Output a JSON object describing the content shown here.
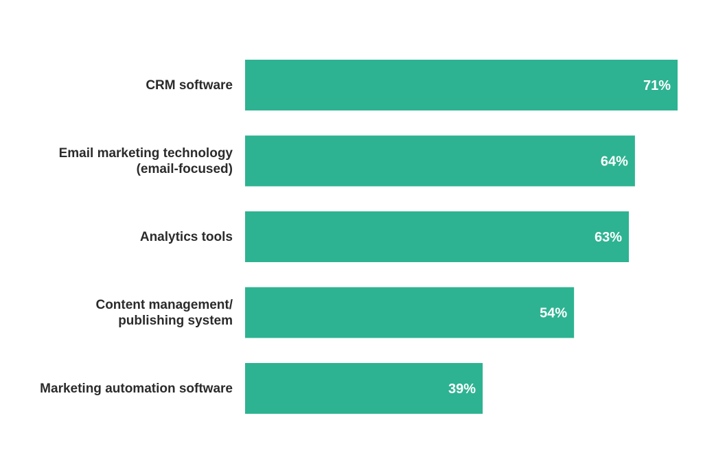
{
  "chart_data": {
    "type": "bar",
    "orientation": "horizontal",
    "categories": [
      "CRM  software",
      "Email marketing technology (email-focused)",
      "Analytics tools",
      "Content management/ publishing system",
      "Marketing automation software"
    ],
    "category_lines": [
      [
        "CRM  software"
      ],
      [
        "Email marketing technology",
        "(email-focused)"
      ],
      [
        "Analytics tools"
      ],
      [
        "Content management/",
        "publishing system"
      ],
      [
        "Marketing automation software"
      ]
    ],
    "values": [
      71,
      64,
      63,
      54,
      39
    ],
    "value_labels": [
      "71%",
      "64%",
      "63%",
      "54%",
      "39%"
    ],
    "bar_color": "#2db391",
    "grid": false,
    "legend": "none"
  }
}
